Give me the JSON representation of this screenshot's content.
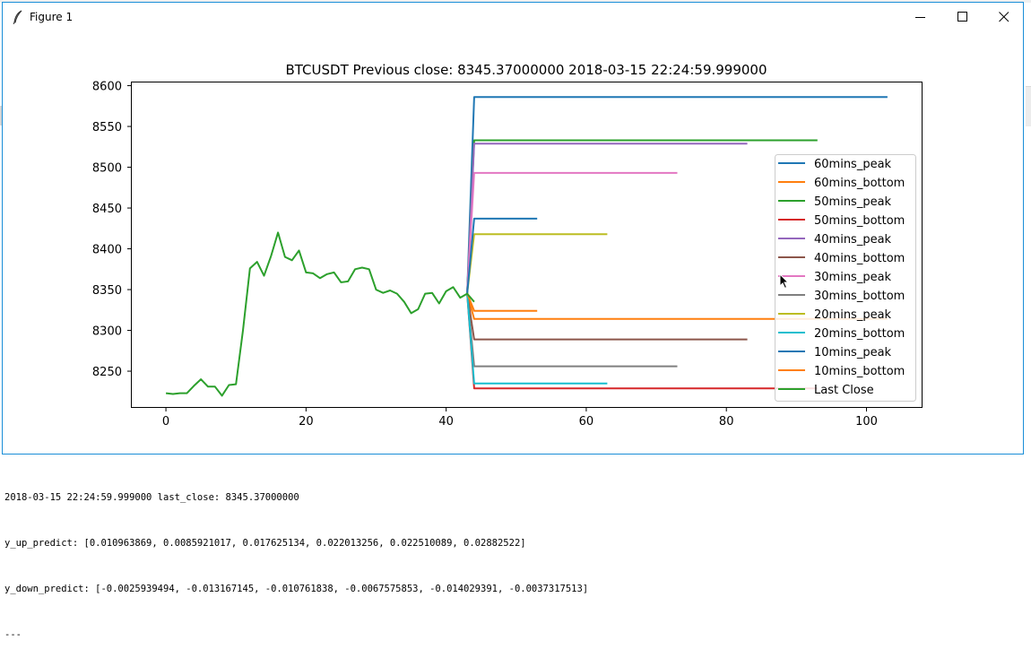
{
  "window": {
    "title": "Figure 1",
    "icons": [
      "feather-icon",
      "minimize-icon",
      "maximize-icon",
      "close-icon"
    ]
  },
  "chart_data": {
    "type": "line",
    "title": "BTCUSDT Previous close: 8345.37000000 2018-03-15 22:24:59.999000",
    "xlabel": "",
    "ylabel": "",
    "xlim": [
      -5,
      108
    ],
    "ylim": [
      8205,
      8605
    ],
    "x_ticks": [
      "0",
      "20",
      "40",
      "60",
      "80",
      "100"
    ],
    "x_tick_values": [
      0,
      20,
      40,
      60,
      80,
      100
    ],
    "y_ticks": [
      "8250",
      "8300",
      "8350",
      "8400",
      "8450",
      "8500",
      "8550",
      "8600"
    ],
    "y_tick_values": [
      8250,
      8300,
      8350,
      8400,
      8450,
      8500,
      8550,
      8600
    ],
    "grid": false,
    "legend_position": "center-right",
    "close_series": {
      "name": "Last Close",
      "color": "#2ca02c",
      "x": [
        0,
        1,
        2,
        3,
        4,
        5,
        6,
        7,
        8,
        9,
        10,
        11,
        12,
        13,
        14,
        15,
        16,
        17,
        18,
        19,
        20,
        21,
        22,
        23,
        24,
        25,
        26,
        27,
        28,
        29,
        30,
        31,
        32,
        33,
        34,
        35,
        36,
        37,
        38,
        39,
        40,
        41,
        42,
        43,
        44
      ],
      "values": [
        8223,
        8222,
        8223,
        8223,
        8232,
        8240,
        8231,
        8231,
        8220,
        8233,
        8234,
        8300,
        8376,
        8384,
        8367,
        8391,
        8420,
        8390,
        8386,
        8398,
        8371,
        8370,
        8364,
        8369,
        8371,
        8359,
        8360,
        8375,
        8377,
        8375,
        8350,
        8346,
        8349,
        8345,
        8335,
        8321,
        8326,
        8345,
        8346,
        8333,
        8348,
        8353,
        8340,
        8345,
        8335
      ]
    },
    "series": [
      {
        "name": "60mins_peak",
        "color": "#1f77b4",
        "x": [
          43,
          44,
          103
        ],
        "values": [
          8345.37,
          8586,
          8586
        ]
      },
      {
        "name": "60mins_bottom",
        "color": "#ff7f0e",
        "x": [
          43,
          44,
          103
        ],
        "values": [
          8345.37,
          8314,
          8314
        ]
      },
      {
        "name": "50mins_peak",
        "color": "#2ca02c",
        "x": [
          43,
          44,
          93
        ],
        "values": [
          8345.37,
          8533,
          8533
        ]
      },
      {
        "name": "50mins_bottom",
        "color": "#d62728",
        "x": [
          43,
          44,
          93
        ],
        "values": [
          8345.37,
          8229,
          8229
        ]
      },
      {
        "name": "40mins_peak",
        "color": "#9467bd",
        "x": [
          43,
          44,
          83
        ],
        "values": [
          8345.37,
          8529,
          8529
        ]
      },
      {
        "name": "40mins_bottom",
        "color": "#8c564b",
        "x": [
          43,
          44,
          83
        ],
        "values": [
          8345.37,
          8289,
          8289
        ]
      },
      {
        "name": "30mins_peak",
        "color": "#e377c2",
        "x": [
          43,
          44,
          73
        ],
        "values": [
          8345.37,
          8493,
          8493
        ]
      },
      {
        "name": "30mins_bottom",
        "color": "#7f7f7f",
        "x": [
          43,
          44,
          73
        ],
        "values": [
          8345.37,
          8256,
          8256
        ]
      },
      {
        "name": "20mins_peak",
        "color": "#bcbd22",
        "x": [
          43,
          44,
          63
        ],
        "values": [
          8345.37,
          8418,
          8418
        ]
      },
      {
        "name": "20mins_bottom",
        "color": "#17becf",
        "x": [
          43,
          44,
          63
        ],
        "values": [
          8345.37,
          8235,
          8235
        ]
      },
      {
        "name": "10mins_peak",
        "color": "#1f77b4",
        "x": [
          43,
          44,
          53
        ],
        "values": [
          8345.37,
          8437,
          8437
        ]
      },
      {
        "name": "10mins_bottom",
        "color": "#ff7f0e",
        "x": [
          43,
          44,
          53
        ],
        "values": [
          8345.37,
          8324,
          8324
        ]
      }
    ],
    "legend": [
      {
        "label": "60mins_peak",
        "color": "#1f77b4"
      },
      {
        "label": "60mins_bottom",
        "color": "#ff7f0e"
      },
      {
        "label": "50mins_peak",
        "color": "#2ca02c"
      },
      {
        "label": "50mins_bottom",
        "color": "#d62728"
      },
      {
        "label": "40mins_peak",
        "color": "#9467bd"
      },
      {
        "label": "40mins_bottom",
        "color": "#8c564b"
      },
      {
        "label": "30mins_peak",
        "color": "#e377c2"
      },
      {
        "label": "30mins_bottom",
        "color": "#7f7f7f"
      },
      {
        "label": "20mins_peak",
        "color": "#bcbd22"
      },
      {
        "label": "20mins_bottom",
        "color": "#17becf"
      },
      {
        "label": "10mins_peak",
        "color": "#1f77b4"
      },
      {
        "label": "10mins_bottom",
        "color": "#ff7f0e"
      },
      {
        "label": "Last Close",
        "color": "#2ca02c"
      }
    ]
  },
  "console": {
    "lines": [
      "2018-03-15 22:24:59.999000 last_close: 8345.37000000",
      "y_up_predict: [0.010963869, 0.0085921017, 0.017625134, 0.022013256, 0.022510089, 0.02882522]",
      "y_down_predict: [-0.0025939494, -0.013167145, -0.010761838, -0.0067575853, -0.014029391, -0.0037317513]",
      "---"
    ]
  }
}
